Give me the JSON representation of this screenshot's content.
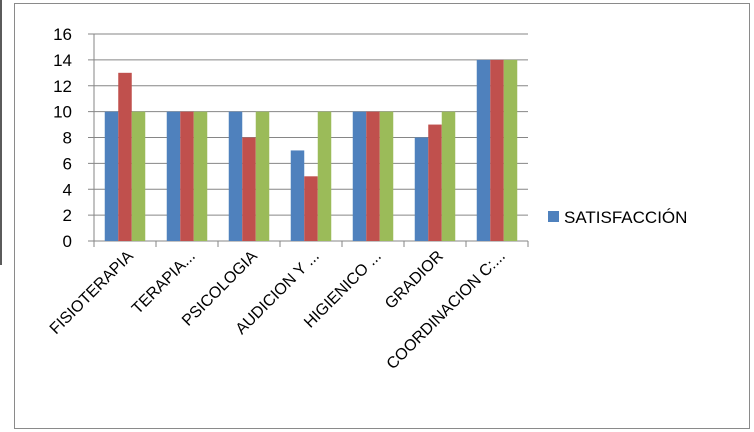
{
  "colors": {
    "series_1": "#4f81bd",
    "series_2": "#c0504d",
    "series_3": "#9bbb59",
    "gridline": "#868686",
    "axis": "#868686"
  },
  "chart_data": {
    "type": "bar",
    "title": "",
    "xlabel": "",
    "ylabel": "",
    "ylim": [
      0,
      16
    ],
    "yticks": [
      0,
      2,
      4,
      6,
      8,
      10,
      12,
      14,
      16
    ],
    "grid": true,
    "legend_position": "right",
    "categories": [
      "FISIOTERAPIA",
      "TERAPIA...",
      "PSICOLOGIA",
      "AUDICION Y ...",
      "HIGIENICO ...",
      "GRADIOR",
      "COORDINACION C:..."
    ],
    "series": [
      {
        "values": [
          10,
          10,
          10,
          7,
          10,
          8,
          14
        ]
      },
      {
        "values": [
          13,
          10,
          8,
          5,
          10,
          9,
          14
        ]
      },
      {
        "values": [
          10,
          10,
          10,
          10,
          10,
          10,
          14
        ]
      }
    ],
    "legend": [
      "SATISFACCIÓN"
    ]
  }
}
